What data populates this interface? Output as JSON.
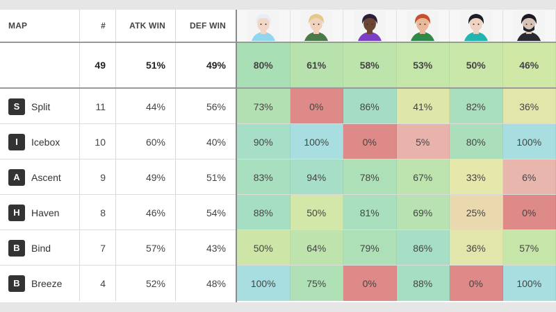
{
  "header": {
    "map_label": "MAP",
    "count_label": "#",
    "atk_label": "ATK WIN",
    "def_label": "DEF WIN"
  },
  "agents": [
    {
      "icon": "agent-portrait-1-icon",
      "hair": "#e9ecf2",
      "skin": "#f2d7c8",
      "bg": "#f4f4f4",
      "accent": "#8fd6ee"
    },
    {
      "icon": "agent-portrait-2-icon",
      "hair": "#e5c98a",
      "skin": "#f1d3bd",
      "bg": "#f4f4f4",
      "accent": "#4a7a4a"
    },
    {
      "icon": "agent-portrait-3-icon",
      "hair": "#2a1e3a",
      "skin": "#6b4632",
      "bg": "#f4f4f4",
      "accent": "#7c3fc4"
    },
    {
      "icon": "agent-portrait-4-icon",
      "hair": "#c8502e",
      "skin": "#e8b898",
      "bg": "#f4f4f4",
      "accent": "#2f8a4a"
    },
    {
      "icon": "agent-portrait-5-icon",
      "hair": "#1c1c24",
      "skin": "#f0d2c0",
      "bg": "#f4f4f4",
      "accent": "#20b5b0"
    },
    {
      "icon": "agent-portrait-6-icon",
      "hair": "#1a1a20",
      "skin": "#d9c2b6",
      "bg": "#f4f4f4",
      "accent": "#2a2a34"
    }
  ],
  "totals": {
    "count": "49",
    "atk": "51%",
    "def": "49%",
    "agents": [
      {
        "text": "80%",
        "color": "#a9dfb5"
      },
      {
        "text": "61%",
        "color": "#b7e2ad"
      },
      {
        "text": "58%",
        "color": "#bde4ab"
      },
      {
        "text": "53%",
        "color": "#c4e6a9"
      },
      {
        "text": "50%",
        "color": "#c9e7a8"
      },
      {
        "text": "46%",
        "color": "#cfe8a6"
      }
    ]
  },
  "rows": [
    {
      "badge": "S",
      "name": "Split",
      "count": "11",
      "atk": "44%",
      "def": "56%",
      "cells": [
        {
          "text": "73%",
          "color": "#b3e0b3"
        },
        {
          "text": "0%",
          "color": "#de8a88"
        },
        {
          "text": "86%",
          "color": "#a4ddc4"
        },
        {
          "text": "41%",
          "color": "#dfe6a9"
        },
        {
          "text": "82%",
          "color": "#a9dfbd"
        },
        {
          "text": "36%",
          "color": "#e3e6aa"
        }
      ]
    },
    {
      "badge": "I",
      "name": "Icebox",
      "count": "10",
      "atk": "60%",
      "def": "40%",
      "cells": [
        {
          "text": "90%",
          "color": "#a6dec8"
        },
        {
          "text": "100%",
          "color": "#a8dee0"
        },
        {
          "text": "0%",
          "color": "#de8a88"
        },
        {
          "text": "5%",
          "color": "#e8b3ab"
        },
        {
          "text": "80%",
          "color": "#abdfbb"
        },
        {
          "text": "100%",
          "color": "#a8dee0"
        }
      ]
    },
    {
      "badge": "A",
      "name": "Ascent",
      "count": "9",
      "atk": "49%",
      "def": "51%",
      "cells": [
        {
          "text": "83%",
          "color": "#a8dfbf"
        },
        {
          "text": "94%",
          "color": "#a7dec8"
        },
        {
          "text": "78%",
          "color": "#aee0b8"
        },
        {
          "text": "67%",
          "color": "#bde3ae"
        },
        {
          "text": "33%",
          "color": "#e6e7ab"
        },
        {
          "text": "6%",
          "color": "#e8b6ad"
        }
      ]
    },
    {
      "badge": "H",
      "name": "Haven",
      "count": "8",
      "atk": "46%",
      "def": "54%",
      "cells": [
        {
          "text": "88%",
          "color": "#a6dec4"
        },
        {
          "text": "50%",
          "color": "#d3e7a8"
        },
        {
          "text": "81%",
          "color": "#a9dfbd"
        },
        {
          "text": "69%",
          "color": "#b8e2b1"
        },
        {
          "text": "25%",
          "color": "#ead9ae"
        },
        {
          "text": "0%",
          "color": "#de8a88"
        }
      ]
    },
    {
      "badge": "B",
      "name": "Bind",
      "count": "7",
      "atk": "57%",
      "def": "43%",
      "cells": [
        {
          "text": "50%",
          "color": "#cde6a7"
        },
        {
          "text": "64%",
          "color": "#bfe3ad"
        },
        {
          "text": "79%",
          "color": "#aee0b8"
        },
        {
          "text": "86%",
          "color": "#a6dec6"
        },
        {
          "text": "36%",
          "color": "#e3e6aa"
        },
        {
          "text": "57%",
          "color": "#c6e5a9"
        }
      ]
    },
    {
      "badge": "B",
      "name": "Breeze",
      "count": "4",
      "atk": "52%",
      "def": "48%",
      "cells": [
        {
          "text": "100%",
          "color": "#a8dee0"
        },
        {
          "text": "75%",
          "color": "#b0e0b6"
        },
        {
          "text": "0%",
          "color": "#de8a88"
        },
        {
          "text": "88%",
          "color": "#a6dec4"
        },
        {
          "text": "0%",
          "color": "#de8a88"
        },
        {
          "text": "100%",
          "color": "#a8dee0"
        }
      ]
    }
  ]
}
